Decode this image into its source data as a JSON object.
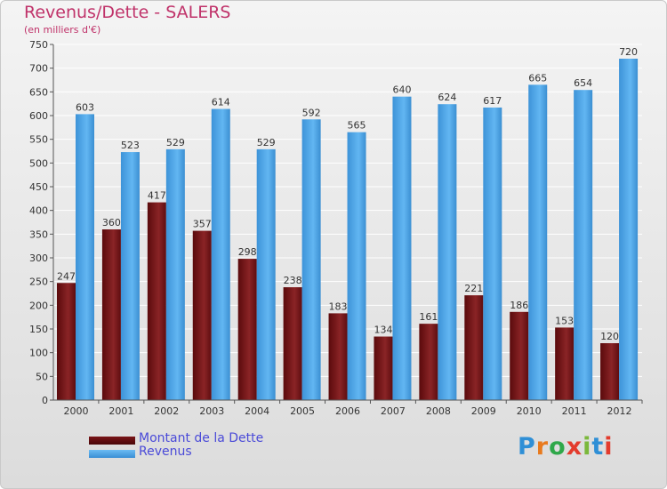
{
  "title": "Revenus/Dette - SALERS",
  "subtitle": "(en milliers d'€)",
  "logo": {
    "text": "Proxiti",
    "colors": [
      "#2f8fd6",
      "#e87a1e",
      "#2fa84a",
      "#e33b2d",
      "#7bb83b",
      "#2f8fd6",
      "#e33b2d"
    ]
  },
  "chart_data": {
    "type": "bar",
    "title": "Revenus/Dette - SALERS",
    "ylabel": "(en milliers d'€)",
    "ylim": [
      0,
      750
    ],
    "yticks": [
      0,
      50,
      100,
      150,
      200,
      250,
      300,
      350,
      400,
      450,
      500,
      550,
      600,
      650,
      700,
      750
    ],
    "categories": [
      "2000",
      "2001",
      "2002",
      "2003",
      "2004",
      "2005",
      "2006",
      "2007",
      "2008",
      "2009",
      "2010",
      "2011",
      "2012"
    ],
    "series": [
      {
        "name": "Montant de la Dette",
        "color": "#6b0f12",
        "values": [
          247,
          360,
          417,
          357,
          298,
          238,
          183,
          134,
          161,
          221,
          186,
          153,
          120
        ]
      },
      {
        "name": "Revenus",
        "color": "#4aa6e8",
        "values": [
          603,
          523,
          529,
          614,
          529,
          592,
          565,
          640,
          624,
          617,
          665,
          654,
          720
        ]
      }
    ],
    "legend_position": "bottom-left"
  }
}
